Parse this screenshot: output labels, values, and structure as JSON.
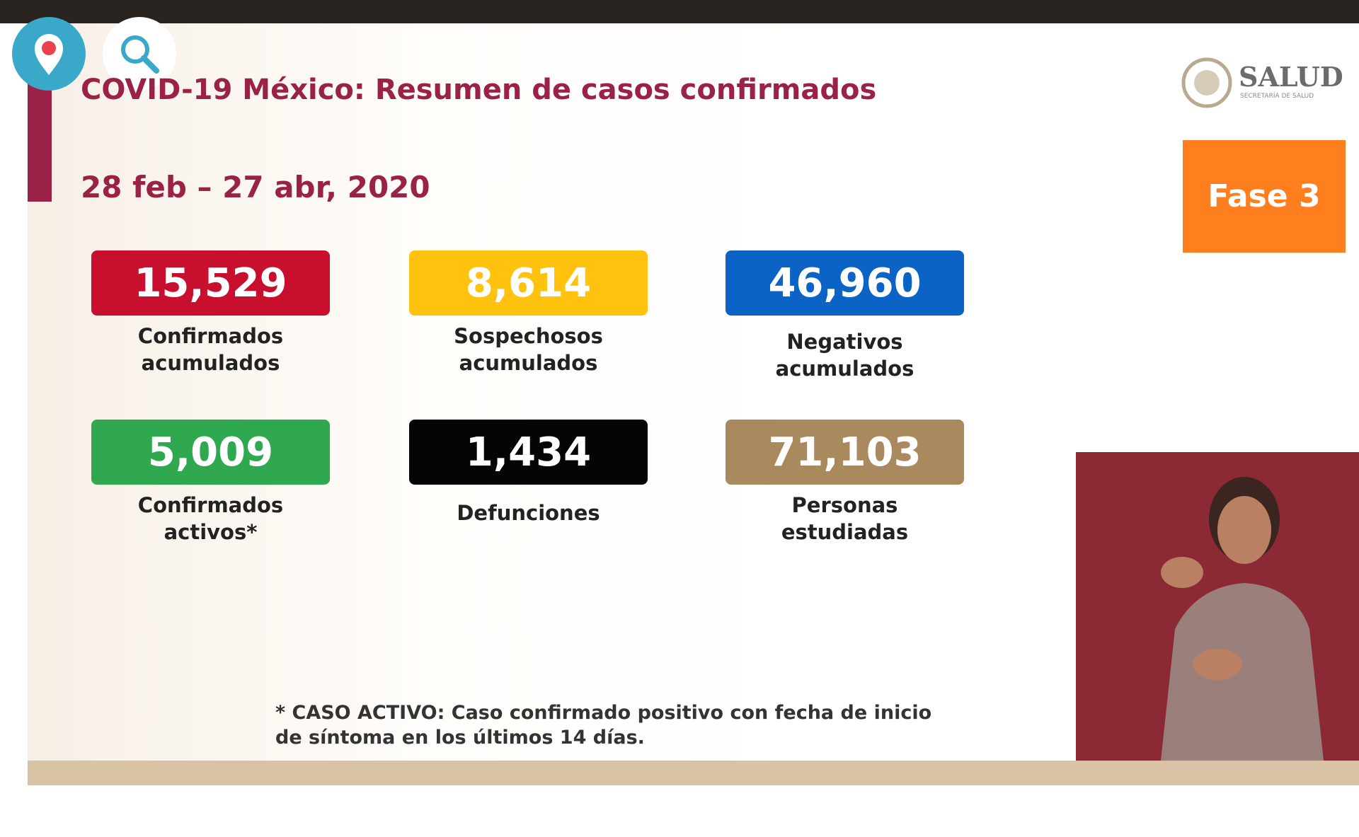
{
  "header": {
    "title": "COVID-19 México: Resumen de casos confirmados",
    "date": "28 feb – 27 abr, 2020",
    "phase": "Fase 3",
    "logo": {
      "name": "SALUD",
      "subtitle": "SECRETARÍA DE SALUD"
    }
  },
  "stats": [
    {
      "value": "15,529",
      "label": [
        "Confirmados",
        "acumulados"
      ],
      "color": "#c8102e"
    },
    {
      "value": "8,614",
      "label": [
        "Sospechosos",
        "acumulados"
      ],
      "color": "#ffc20e"
    },
    {
      "value": "46,960",
      "label": [
        "Negativos",
        "acumulados"
      ],
      "color": "#0b63c5"
    },
    {
      "value": "5,009",
      "label": [
        "Confirmados",
        "activos*"
      ],
      "color": "#2fa84f"
    },
    {
      "value": "1,434",
      "label": [
        "Defunciones"
      ],
      "color": "#050505"
    },
    {
      "value": "71,103",
      "label": [
        "Personas",
        "estudiadas"
      ],
      "color": "#a98a5e"
    }
  ],
  "footnote": [
    "* CASO ACTIVO: Caso confirmado positivo con fecha de inicio",
    "de síntoma en los últimos 14 días."
  ]
}
